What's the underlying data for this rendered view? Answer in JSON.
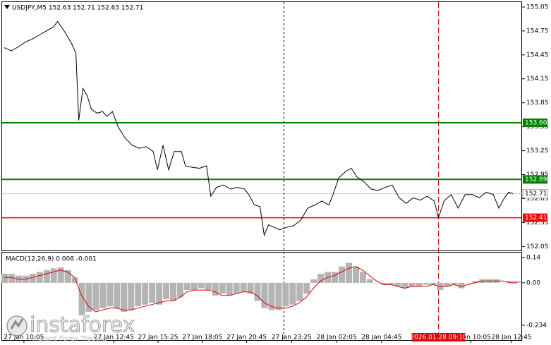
{
  "chart_data": [
    {
      "type": "line",
      "title": "USDJPY,M5  152.63 152.71 152.63 152.71",
      "color": "#000000",
      "x": [
        0,
        5,
        10,
        15,
        20,
        25,
        30,
        35,
        38,
        43,
        48,
        51,
        53,
        56,
        59,
        62,
        66,
        70,
        73,
        77,
        81,
        86,
        91,
        96,
        101,
        106,
        109,
        113,
        117,
        121,
        126,
        129,
        134,
        139,
        144,
        147,
        151,
        156,
        161,
        166,
        171,
        174,
        178,
        182,
        185,
        188,
        192,
        196,
        201,
        206,
        211,
        216,
        221,
        226,
        231,
        234,
        238,
        243,
        247,
        251,
        256,
        261,
        266,
        271,
        276,
        281,
        286,
        291,
        296,
        301,
        306,
        309,
        313,
        318,
        323,
        328,
        333,
        338,
        343,
        348,
        352,
        356,
        359,
        362
      ],
      "values": [
        154.54,
        154.5,
        154.55,
        154.61,
        154.65,
        154.7,
        154.75,
        154.8,
        154.87,
        154.74,
        154.59,
        154.47,
        153.63,
        154.03,
        153.94,
        153.77,
        153.72,
        153.74,
        153.68,
        153.74,
        153.55,
        153.41,
        153.32,
        153.28,
        153.3,
        153.24,
        153.01,
        153.32,
        153.01,
        153.24,
        153.24,
        153.06,
        153.04,
        153.03,
        153.06,
        152.68,
        152.79,
        152.82,
        152.77,
        152.79,
        152.77,
        152.7,
        152.57,
        152.55,
        152.19,
        152.32,
        152.29,
        152.26,
        152.29,
        152.31,
        152.38,
        152.53,
        152.57,
        152.62,
        152.57,
        152.7,
        152.91,
        152.99,
        153.03,
        152.92,
        152.86,
        152.77,
        152.75,
        152.79,
        152.82,
        152.66,
        152.59,
        152.66,
        152.63,
        152.68,
        152.62,
        152.41,
        152.62,
        152.7,
        152.53,
        152.7,
        152.7,
        152.66,
        152.73,
        152.7,
        152.53,
        152.66,
        152.73,
        152.71
      ],
      "xlim": [
        -1.5,
        368.5
      ],
      "ylim": [
        152.0,
        155.12
      ],
      "yticks": [
        155.05,
        154.75,
        154.45,
        154.15,
        153.85,
        153.55,
        153.25,
        152.95,
        152.65,
        152.35,
        152.05
      ],
      "levels": [
        {
          "value": 153.6,
          "label": "153.60",
          "color": "#008000"
        },
        {
          "value": 152.89,
          "label": "152.89",
          "color": "#008000"
        },
        {
          "value": 152.41,
          "label": "152.41",
          "color": "#ff0000"
        }
      ],
      "current_price": {
        "value": 152.71,
        "label": "152.71"
      },
      "vlines": [
        {
          "x": 199,
          "color": "#000000"
        },
        {
          "x": 309,
          "color": "#e00000"
        }
      ]
    },
    {
      "type": "macd",
      "title": "MACD(12,26,9) 0.008 -0.001",
      "hist_color": "#b4b4b4",
      "signal_color": "#e00000",
      "x": [
        0,
        5,
        10,
        15,
        20,
        25,
        30,
        35,
        40,
        45,
        50,
        55,
        60,
        65,
        70,
        75,
        80,
        85,
        90,
        95,
        100,
        105,
        110,
        115,
        120,
        125,
        130,
        135,
        140,
        145,
        150,
        155,
        160,
        165,
        170,
        175,
        180,
        185,
        190,
        195,
        200,
        205,
        210,
        215,
        220,
        225,
        230,
        235,
        240,
        245,
        250,
        255,
        260,
        265,
        270,
        275,
        280,
        285,
        290,
        295,
        300,
        305,
        310,
        315,
        320,
        325,
        330,
        335,
        340,
        345,
        350,
        355,
        360,
        365
      ],
      "histogram": [
        0.05,
        0.05,
        0.04,
        0.04,
        0.05,
        0.06,
        0.07,
        0.08,
        0.085,
        0.07,
        0.03,
        -0.18,
        -0.16,
        -0.15,
        -0.14,
        -0.13,
        -0.14,
        -0.16,
        -0.15,
        -0.13,
        -0.12,
        -0.11,
        -0.12,
        -0.09,
        -0.1,
        -0.08,
        -0.04,
        -0.04,
        -0.03,
        -0.04,
        -0.07,
        -0.06,
        -0.07,
        -0.06,
        -0.05,
        -0.06,
        -0.1,
        -0.14,
        -0.15,
        -0.15,
        -0.13,
        -0.12,
        -0.1,
        -0.06,
        0.02,
        0.05,
        0.06,
        0.06,
        0.09,
        0.11,
        0.09,
        0.06,
        0.02,
        0.0,
        -0.01,
        -0.01,
        -0.02,
        -0.03,
        -0.02,
        -0.02,
        -0.01,
        -0.01,
        -0.04,
        -0.02,
        -0.01,
        -0.03,
        0.0,
        0.01,
        0.02,
        0.02,
        0.02,
        0.0,
        0.01,
        0.01
      ],
      "signal": [
        0.03,
        0.03,
        0.02,
        0.02,
        0.03,
        0.04,
        0.05,
        0.06,
        0.07,
        0.06,
        0.03,
        -0.07,
        -0.13,
        -0.16,
        -0.15,
        -0.14,
        -0.14,
        -0.15,
        -0.15,
        -0.14,
        -0.13,
        -0.12,
        -0.11,
        -0.1,
        -0.1,
        -0.08,
        -0.05,
        -0.04,
        -0.04,
        -0.04,
        -0.05,
        -0.07,
        -0.07,
        -0.06,
        -0.05,
        -0.05,
        -0.07,
        -0.11,
        -0.13,
        -0.14,
        -0.14,
        -0.13,
        -0.11,
        -0.08,
        -0.03,
        0.01,
        0.03,
        0.04,
        0.06,
        0.08,
        0.09,
        0.07,
        0.04,
        0.01,
        -0.01,
        -0.01,
        -0.02,
        -0.03,
        -0.02,
        -0.02,
        -0.02,
        -0.01,
        -0.02,
        -0.02,
        -0.01,
        -0.02,
        -0.01,
        0.0,
        0.01,
        0.01,
        0.01,
        0.01,
        0.0,
        0.0
      ],
      "xlim": [
        -1.5,
        368.5
      ],
      "ylim": [
        -0.32,
        0.171
      ],
      "yticks": [
        0.14,
        {
          "value": 0,
          "label": "0.00"
        },
        -0.234
      ],
      "xticks": [
        {
          "value": 14,
          "label": "27 Jan 10:05"
        },
        {
          "value": 78,
          "label": "27 Jan 12:45"
        },
        {
          "value": 109.5,
          "label": "27 Jan 15:25"
        },
        {
          "value": 141,
          "label": "27 Jan 18:05"
        },
        {
          "value": 172.5,
          "label": "27 Jan 20:45"
        },
        {
          "value": 204.5,
          "label": "27 Jan 23:25"
        },
        {
          "value": 236.5,
          "label": "28 Jan 02:05"
        },
        {
          "value": 268.5,
          "label": "28 Jan 04:45"
        },
        {
          "value": 332,
          "label": "28 Jan 10:05"
        },
        {
          "value": 361,
          "label": "28 Jan 12:45"
        }
      ],
      "cursor_x": {
        "value": 309,
        "label": "2026.01.28 09:10"
      },
      "watermark": {
        "brand": "instaforex",
        "tagline": "Instant Forex Trading"
      }
    }
  ]
}
